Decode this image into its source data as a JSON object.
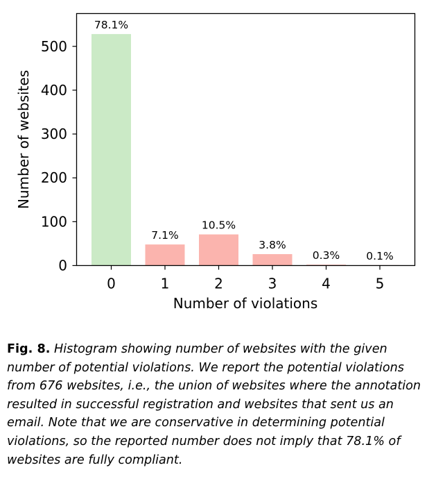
{
  "chart_data": {
    "type": "bar",
    "categories": [
      "0",
      "1",
      "2",
      "3",
      "4",
      "5"
    ],
    "values": [
      528,
      48,
      71,
      26,
      2,
      1
    ],
    "data_labels": [
      "78.1%",
      "7.1%",
      "10.5%",
      "3.8%",
      "0.3%",
      "0.1%"
    ],
    "bar_colors": [
      "#cbeac6",
      "#fbb4ae",
      "#fbb4ae",
      "#fbb4ae",
      "#fbb4ae",
      "#fbb4ae"
    ],
    "xlabel": "Number of violations",
    "ylabel": "Number of websites",
    "yticks": [
      0,
      100,
      200,
      300,
      400,
      500
    ],
    "ylim": [
      0,
      570
    ],
    "grid": false
  },
  "caption": {
    "label": "Fig. 8.",
    "text": "Histogram showing number of websites with the given number of potential violations. We report the potential violations from 676 websites, i.e., the union of websites where the annotation resulted in successful registration and websites that sent us an email. Note that we are conservative in determining potential violations, so the reported number does not imply that 78.1% of websites are fully compliant."
  }
}
